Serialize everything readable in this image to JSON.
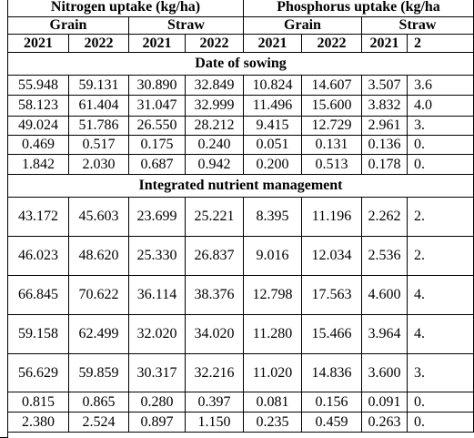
{
  "header": {
    "groups": [
      "Nitrogen uptake (kg/ha)",
      "Phosphorus uptake (kg/ha"
    ],
    "parts": [
      "Grain",
      "Straw",
      "Grain",
      "Straw"
    ],
    "years": [
      "2021",
      "2022",
      "2021",
      "2022",
      "2021",
      "2022",
      "2021",
      "2"
    ]
  },
  "sections": [
    {
      "title": "Date of sowing",
      "rows": [
        [
          "55.948",
          "59.131",
          "30.890",
          "32.849",
          "10.824",
          "14.607",
          "3.507",
          "3.6"
        ],
        [
          "58.123",
          "61.404",
          "31.047",
          "32.999",
          "11.496",
          "15.600",
          "3.832",
          "4.0"
        ],
        [
          "49.024",
          "51.786",
          "26.550",
          "28.212",
          "9.415",
          "12.729",
          "2.961",
          "3."
        ],
        [
          "0.469",
          "0.517",
          "0.175",
          "0.240",
          "0.051",
          "0.131",
          "0.136",
          "0."
        ],
        [
          "1.842",
          "2.030",
          "0.687",
          "0.942",
          "0.200",
          "0.513",
          "0.178",
          "0."
        ]
      ]
    },
    {
      "title": "Integrated nutrient management",
      "rows": [
        [
          "43.172",
          "45.603",
          "23.699",
          "25.221",
          "8.395",
          "11.196",
          "2.262",
          "2."
        ],
        [
          "46.023",
          "48.620",
          "25.330",
          "26.837",
          "9.016",
          "12.034",
          "2.536",
          "2."
        ],
        [
          "66.845",
          "70.622",
          "36.114",
          "38.376",
          "12.798",
          "17.563",
          "4.600",
          "4."
        ],
        [
          "59.158",
          "62.499",
          "32.020",
          "34.020",
          "11.280",
          "15.466",
          "3.964",
          "4."
        ],
        [
          "56.629",
          "59.859",
          "30.317",
          "32.216",
          "11.020",
          "14.836",
          "3.600",
          "3."
        ],
        [
          "0.815",
          "0.865",
          "0.280",
          "0.397",
          "0.081",
          "0.156",
          "0.091",
          "0."
        ],
        [
          "2.380",
          "2.524",
          "0.897",
          "1.150",
          "0.235",
          "0.459",
          "0.263",
          "0."
        ]
      ]
    }
  ]
}
